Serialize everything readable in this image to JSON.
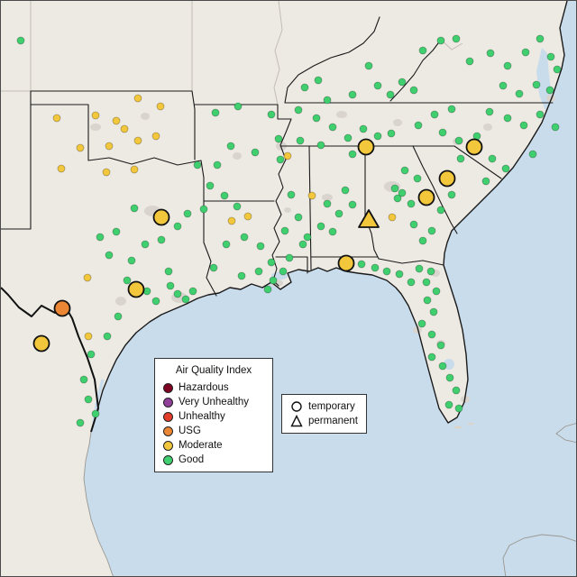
{
  "legend_aqi": {
    "title": "Air Quality Index",
    "items": [
      {
        "label": "Hazardous",
        "color": "#7e0023"
      },
      {
        "label": "Very Unhealthy",
        "color": "#8f3f97"
      },
      {
        "label": "Unhealthy",
        "color": "#e23d28"
      },
      {
        "label": "USG",
        "color": "#ea8634"
      },
      {
        "label": "Moderate",
        "color": "#f2c73b"
      },
      {
        "label": "Good",
        "color": "#3fcf6e"
      }
    ]
  },
  "legend_shape": {
    "items": [
      {
        "label": "temporary",
        "shape": "circle"
      },
      {
        "label": "permanent",
        "shape": "triangle"
      }
    ]
  },
  "map_colors": {
    "water": "#c9dcec",
    "land": "#edeae3",
    "coast_outline": "#1a1a1a",
    "faint_line": "#c2bdb4",
    "urban": "#d9d5ce"
  },
  "chart_data": {
    "type": "scatter",
    "title": "",
    "legend_position": "bottom-left",
    "marker_colors": {
      "good": "#3fcf6e",
      "moderate": "#f2c73b",
      "usg": "#ea8634"
    },
    "series": [
      {
        "name": "Good - monitor",
        "aqi": "good",
        "marker": "dot",
        "points": [
          [
            22,
            44
          ],
          [
            238,
            124
          ],
          [
            263,
            117
          ],
          [
            300,
            126
          ],
          [
            330,
            121
          ],
          [
            308,
            153
          ],
          [
            255,
            161
          ],
          [
            282,
            168
          ],
          [
            240,
            182
          ],
          [
            310,
            176
          ],
          [
            218,
            182
          ],
          [
            232,
            205
          ],
          [
            248,
            216
          ],
          [
            262,
            228
          ],
          [
            225,
            231
          ],
          [
            337,
            96
          ],
          [
            352,
            88
          ],
          [
            362,
            110
          ],
          [
            390,
            104
          ],
          [
            408,
            72
          ],
          [
            418,
            94
          ],
          [
            432,
            104
          ],
          [
            445,
            90
          ],
          [
            458,
            99
          ],
          [
            350,
            130
          ],
          [
            368,
            140
          ],
          [
            385,
            152
          ],
          [
            402,
            142
          ],
          [
            418,
            150
          ],
          [
            433,
            147
          ],
          [
            390,
            170
          ],
          [
            355,
            160
          ],
          [
            332,
            155
          ],
          [
            468,
            55
          ],
          [
            488,
            44
          ],
          [
            505,
            42
          ],
          [
            520,
            67
          ],
          [
            543,
            58
          ],
          [
            562,
            72
          ],
          [
            582,
            57
          ],
          [
            598,
            42
          ],
          [
            610,
            62
          ],
          [
            617,
            76
          ],
          [
            594,
            93
          ],
          [
            575,
            103
          ],
          [
            557,
            94
          ],
          [
            609,
            99
          ],
          [
            615,
            140
          ],
          [
            598,
            126
          ],
          [
            580,
            138
          ],
          [
            562,
            130
          ],
          [
            542,
            123
          ],
          [
            500,
            120
          ],
          [
            481,
            126
          ],
          [
            463,
            138
          ],
          [
            490,
            146
          ],
          [
            508,
            155
          ],
          [
            528,
            150
          ],
          [
            545,
            175
          ],
          [
            560,
            186
          ],
          [
            538,
            200
          ],
          [
            590,
            170
          ],
          [
            510,
            175
          ],
          [
            448,
            188
          ],
          [
            462,
            197
          ],
          [
            437,
            208
          ],
          [
            445,
            213
          ],
          [
            440,
            219
          ],
          [
            455,
            225
          ],
          [
            488,
            232
          ],
          [
            458,
            248
          ],
          [
            478,
            255
          ],
          [
            468,
            266
          ],
          [
            500,
            215
          ],
          [
            362,
            225
          ],
          [
            375,
            236
          ],
          [
            355,
            250
          ],
          [
            340,
            262
          ],
          [
            368,
            256
          ],
          [
            390,
            226
          ],
          [
            382,
            210
          ],
          [
            330,
            240
          ],
          [
            315,
            255
          ],
          [
            335,
            270
          ],
          [
            320,
            285
          ],
          [
            322,
            215
          ],
          [
            270,
            262
          ],
          [
            288,
            272
          ],
          [
            300,
            290
          ],
          [
            286,
            300
          ],
          [
            267,
            305
          ],
          [
            302,
            310
          ],
          [
            313,
            300
          ],
          [
            296,
            320
          ],
          [
            250,
            270
          ],
          [
            236,
            296
          ],
          [
            148,
            230
          ],
          [
            128,
            256
          ],
          [
            160,
            270
          ],
          [
            145,
            288
          ],
          [
            178,
            265
          ],
          [
            196,
            250
          ],
          [
            207,
            236
          ],
          [
            186,
            300
          ],
          [
            162,
            322
          ],
          [
            172,
            333
          ],
          [
            188,
            316
          ],
          [
            196,
            325
          ],
          [
            205,
            331
          ],
          [
            213,
            322
          ],
          [
            140,
            310
          ],
          [
            120,
            282
          ],
          [
            110,
            262
          ],
          [
            100,
            392
          ],
          [
            92,
            420
          ],
          [
            97,
            442
          ],
          [
            105,
            458
          ],
          [
            88,
            468
          ],
          [
            118,
            372
          ],
          [
            130,
            350
          ],
          [
            400,
            292
          ],
          [
            415,
            296
          ],
          [
            428,
            300
          ],
          [
            442,
            303
          ],
          [
            455,
            312
          ],
          [
            464,
            297
          ],
          [
            477,
            300
          ],
          [
            472,
            312
          ],
          [
            483,
            322
          ],
          [
            473,
            332
          ],
          [
            480,
            345
          ],
          [
            467,
            358
          ],
          [
            478,
            370
          ],
          [
            488,
            382
          ],
          [
            478,
            395
          ],
          [
            490,
            405
          ],
          [
            498,
            418
          ],
          [
            505,
            432
          ],
          [
            497,
            448
          ],
          [
            508,
            452
          ]
        ]
      },
      {
        "name": "Moderate - monitor",
        "aqi": "moderate",
        "marker": "dot",
        "points": [
          [
            62,
            130
          ],
          [
            105,
            127
          ],
          [
            128,
            133
          ],
          [
            137,
            142
          ],
          [
            152,
            155
          ],
          [
            88,
            163
          ],
          [
            67,
            186
          ],
          [
            117,
            190
          ],
          [
            148,
            187
          ],
          [
            172,
            150
          ],
          [
            152,
            108
          ],
          [
            120,
            161
          ],
          [
            177,
            117
          ],
          [
            96,
            307
          ],
          [
            97,
            372
          ],
          [
            256,
            244
          ],
          [
            274,
            239
          ],
          [
            345,
            216
          ],
          [
            434,
            240
          ],
          [
            318,
            172
          ]
        ]
      },
      {
        "name": "Moderate - temporary station",
        "aqi": "moderate",
        "marker": "large-circle",
        "points": [
          [
            178,
            240
          ],
          [
            150,
            320
          ],
          [
            45,
            380
          ],
          [
            383,
            291
          ],
          [
            405,
            162
          ],
          [
            472,
            218
          ],
          [
            495,
            197
          ],
          [
            525,
            162
          ]
        ]
      },
      {
        "name": "USG - temporary station",
        "aqi": "usg",
        "marker": "large-circle",
        "points": [
          [
            68,
            341
          ]
        ]
      },
      {
        "name": "Moderate - permanent station",
        "aqi": "moderate",
        "marker": "large-triangle",
        "points": [
          [
            408,
            243
          ]
        ]
      }
    ]
  }
}
